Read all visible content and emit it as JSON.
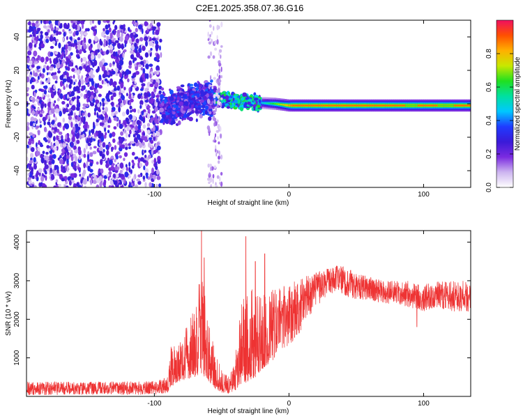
{
  "figure": {
    "title": "C2E1.2025.358.07.36.G16"
  },
  "chart_data": [
    {
      "type": "heatmap",
      "title": "C2E1.2025.358.07.36.G16",
      "xlabel": "Height of straight line (km)",
      "ylabel": "Frequency (Hz)",
      "xlim": [
        -195,
        135
      ],
      "ylim": [
        -50,
        50
      ],
      "x_ticks": [
        -100,
        0,
        100
      ],
      "x_tick_labels": [
        "-100",
        "0",
        "100"
      ],
      "y_ticks": [
        -40,
        -20,
        0,
        20,
        40
      ],
      "y_tick_labels": [
        "-40",
        "-20",
        "0",
        "20",
        "40"
      ],
      "grid": false,
      "colorbar": {
        "label": "Normalized spectral amplitude",
        "range": [
          0.0,
          1.0
        ],
        "ticks": [
          0.0,
          0.2,
          0.4,
          0.6,
          0.8
        ],
        "tick_labels": [
          "0.0",
          "0.2",
          "0.4",
          "0.6",
          "0.8"
        ],
        "colormap": [
          "#ffffff",
          "#cdb5f0",
          "#7b2be0",
          "#3a1ad8",
          "#1f3bff",
          "#00c8ff",
          "#00e0a0",
          "#20e020",
          "#c8e800",
          "#ffb000",
          "#ff5000",
          "#f01060"
        ]
      },
      "regions": [
        {
          "x_range": [
            -195,
            -95
          ],
          "freq_range": [
            -50,
            50
          ],
          "amplitude": 0.22,
          "pattern": "noise"
        },
        {
          "x_range": [
            -95,
            -55
          ],
          "freq_range": [
            -10,
            10
          ],
          "amplitude": 0.3,
          "pattern": "scattered"
        },
        {
          "x_range": [
            -55,
            -20
          ],
          "freq_range": [
            -3,
            6
          ],
          "amplitude": 0.5,
          "pattern": "scattered"
        },
        {
          "x_range": [
            -60,
            -50
          ],
          "freq_range": [
            -50,
            50
          ],
          "amplitude": 0.15,
          "pattern": "faint column"
        },
        {
          "x_range": [
            -20,
            135
          ],
          "freq_range": [
            -1.5,
            1.5
          ],
          "amplitude": 0.9,
          "pattern": "narrow line near 0 Hz"
        }
      ],
      "peak_line": [
        {
          "x": -90,
          "f": -3
        },
        {
          "x": -80,
          "f": 0
        },
        {
          "x": -70,
          "f": 2
        },
        {
          "x": -60,
          "f": 3
        },
        {
          "x": -50,
          "f": 3
        },
        {
          "x": -40,
          "f": 2
        },
        {
          "x": -30,
          "f": 1
        },
        {
          "x": -20,
          "f": 0.5
        },
        {
          "x": -10,
          "f": 0
        },
        {
          "x": 0,
          "f": -1
        },
        {
          "x": 50,
          "f": -1
        },
        {
          "x": 100,
          "f": -1
        },
        {
          "x": 135,
          "f": -1
        }
      ]
    },
    {
      "type": "line",
      "xlabel": "Height of straight line (km)",
      "ylabel": "SNR (10 * v/v)",
      "xlim": [
        -195,
        135
      ],
      "ylim": [
        0,
        4300
      ],
      "x_ticks": [
        -100,
        0,
        100
      ],
      "x_tick_labels": [
        "-100",
        "0",
        "100"
      ],
      "y_ticks": [
        1000,
        2000,
        3000,
        4000
      ],
      "y_tick_labels": [
        "1000",
        "2000",
        "3000",
        "4000"
      ],
      "grid": false,
      "color": "#ee3333",
      "series": [
        {
          "name": "SNR",
          "envelope": [
            {
              "x": -195,
              "low": 30,
              "high": 380
            },
            {
              "x": -150,
              "low": 40,
              "high": 380
            },
            {
              "x": -100,
              "low": 40,
              "high": 400
            },
            {
              "x": -90,
              "low": 60,
              "high": 500
            },
            {
              "x": -88,
              "low": 250,
              "high": 1300
            },
            {
              "x": -80,
              "low": 400,
              "high": 1500
            },
            {
              "x": -70,
              "low": 500,
              "high": 2300
            },
            {
              "x": -65,
              "low": 600,
              "high": 3500
            },
            {
              "x": -60,
              "low": 400,
              "high": 2200
            },
            {
              "x": -55,
              "low": 200,
              "high": 1100
            },
            {
              "x": -50,
              "low": 100,
              "high": 700
            },
            {
              "x": -45,
              "low": 80,
              "high": 500
            },
            {
              "x": -40,
              "low": 150,
              "high": 1000
            },
            {
              "x": -35,
              "low": 300,
              "high": 2500
            },
            {
              "x": -30,
              "low": 400,
              "high": 3200
            },
            {
              "x": -25,
              "low": 500,
              "high": 2600
            },
            {
              "x": -20,
              "low": 700,
              "high": 2700
            },
            {
              "x": -10,
              "low": 1000,
              "high": 2800
            },
            {
              "x": 0,
              "low": 1300,
              "high": 2900
            },
            {
              "x": 10,
              "low": 1700,
              "high": 3100
            },
            {
              "x": 20,
              "low": 2300,
              "high": 3200
            },
            {
              "x": 30,
              "low": 2700,
              "high": 3400
            },
            {
              "x": 40,
              "low": 2600,
              "high": 3400
            },
            {
              "x": 50,
              "low": 2500,
              "high": 3200
            },
            {
              "x": 60,
              "low": 2500,
              "high": 3100
            },
            {
              "x": 70,
              "low": 2400,
              "high": 3000
            },
            {
              "x": 80,
              "low": 2400,
              "high": 3000
            },
            {
              "x": 90,
              "low": 2300,
              "high": 3000
            },
            {
              "x": 100,
              "low": 2200,
              "high": 2900
            },
            {
              "x": 110,
              "low": 2300,
              "high": 3000
            },
            {
              "x": 120,
              "low": 2200,
              "high": 3000
            },
            {
              "x": 135,
              "low": 2200,
              "high": 3000
            }
          ],
          "spikes": [
            {
              "x": -65,
              "value": 4300
            },
            {
              "x": -63,
              "value": 3600
            },
            {
              "x": -32,
              "value": 4150
            },
            {
              "x": -25,
              "value": 3500
            },
            {
              "x": -18,
              "value": 3700
            },
            {
              "x": 95,
              "value": 1800
            }
          ]
        }
      ]
    }
  ]
}
